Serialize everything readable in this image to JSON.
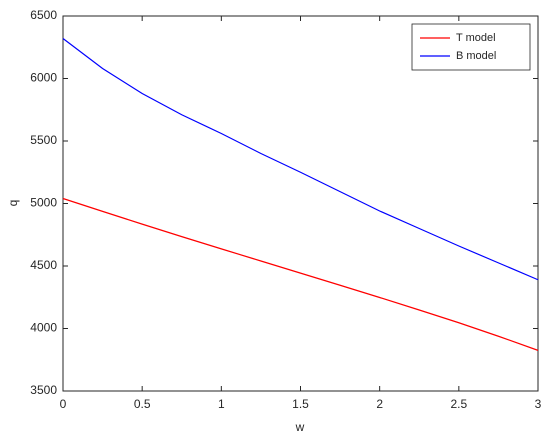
{
  "chart_data": {
    "type": "line",
    "x_label": "w",
    "y_label": "q",
    "x": [
      0,
      0.25,
      0.5,
      0.75,
      1,
      1.25,
      1.5,
      1.75,
      2,
      2.25,
      2.5,
      2.75,
      3
    ],
    "series": [
      {
        "name": "T model",
        "color": "#ff0000",
        "values": [
          5040,
          4937,
          4835,
          4735,
          4637,
          4540,
          4443,
          4346,
          4248,
          4148,
          4046,
          3938,
          3825
        ]
      },
      {
        "name": "B model",
        "color": "#0000ff",
        "values": [
          6320,
          6080,
          5880,
          5710,
          5560,
          5400,
          5250,
          5095,
          4940,
          4800,
          4660,
          4525,
          4390
        ]
      }
    ],
    "xlim": [
      0,
      3
    ],
    "xticks": [
      0,
      0.5,
      1,
      1.5,
      2,
      2.5,
      3
    ],
    "ylim": [
      3500,
      6500
    ],
    "yticks": [
      3500,
      4000,
      4500,
      5000,
      5500,
      6000,
      6500
    ],
    "grid": false,
    "legend": "top-right"
  }
}
